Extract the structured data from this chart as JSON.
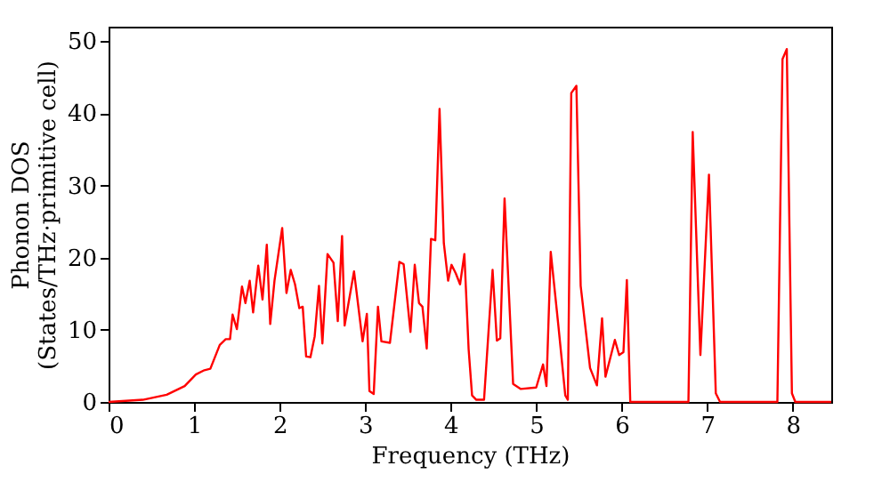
{
  "chart_data": {
    "type": "line",
    "xlabel": "Frequency (THz)",
    "ylabel": "Phonon DOS\n(States/THz·primitive cell)",
    "xlim": [
      0,
      8.45
    ],
    "ylim": [
      0,
      52
    ],
    "xticks": [
      0,
      1,
      2,
      3,
      4,
      5,
      6,
      7,
      8
    ],
    "yticks": [
      0,
      10,
      20,
      30,
      40,
      50
    ],
    "grid": false,
    "legend": false,
    "marker": "none",
    "line_style": "solid",
    "series": [
      {
        "color": "#ff0000",
        "x": [
          0,
          0.4,
          0.68,
          0.89,
          1.02,
          1.12,
          1.19,
          1.3,
          1.37,
          1.42,
          1.45,
          1.5,
          1.56,
          1.6,
          1.65,
          1.69,
          1.75,
          1.8,
          1.85,
          1.89,
          1.94,
          2.03,
          2.08,
          2.13,
          2.18,
          2.23,
          2.27,
          2.31,
          2.36,
          2.41,
          2.46,
          2.5,
          2.56,
          2.63,
          2.68,
          2.73,
          2.76,
          2.87,
          2.97,
          3.02,
          3.05,
          3.1,
          3.15,
          3.19,
          3.29,
          3.4,
          3.45,
          3.53,
          3.58,
          3.63,
          3.67,
          3.72,
          3.77,
          3.82,
          3.87,
          3.92,
          3.97,
          4.01,
          4.06,
          4.11,
          4.16,
          4.21,
          4.25,
          4.3,
          4.39,
          4.49,
          4.54,
          4.58,
          4.63,
          4.73,
          4.82,
          5.0,
          5.08,
          5.12,
          5.17,
          5.26,
          5.34,
          5.37,
          5.41,
          5.47,
          5.52,
          5.63,
          5.71,
          5.77,
          5.81,
          5.92,
          5.97,
          6.02,
          6.06,
          6.1,
          6.78,
          6.83,
          6.92,
          7.02,
          7.1,
          7.15,
          7.82,
          7.88,
          7.93,
          7.99,
          8.03,
          8.45
        ],
        "values": [
          0,
          0.3,
          1.0,
          2.2,
          3.8,
          4.4,
          4.6,
          7.9,
          8.7,
          8.7,
          12.1,
          10.1,
          16,
          13.7,
          16.8,
          12.4,
          18.9,
          14.2,
          21.8,
          10.8,
          16.8,
          24.1,
          15.1,
          18.3,
          16.3,
          13,
          13.2,
          6.3,
          6.2,
          9.1,
          16.1,
          8.1,
          20.5,
          19.3,
          11.2,
          23,
          10.6,
          18.1,
          8.4,
          12.2,
          1.5,
          1.1,
          13.2,
          8.4,
          8.2,
          19.4,
          19.1,
          9.7,
          19,
          13.7,
          13.2,
          7.4,
          22.6,
          22.4,
          40.6,
          22,
          16.8,
          19,
          17.8,
          16.3,
          20.5,
          7.3,
          0.9,
          0.3,
          0.3,
          18.3,
          8.5,
          8.8,
          28.2,
          2.5,
          1.8,
          2,
          5.2,
          2.2,
          20.8,
          10.5,
          0.9,
          0.3,
          42.8,
          43.8,
          16.1,
          4.7,
          2.3,
          11.6,
          3.5,
          8.6,
          6.5,
          6.9,
          16.9,
          0,
          0,
          37.4,
          6.5,
          31.5,
          1.2,
          0,
          0,
          47.5,
          48.9,
          1.2,
          0,
          0
        ]
      }
    ]
  }
}
